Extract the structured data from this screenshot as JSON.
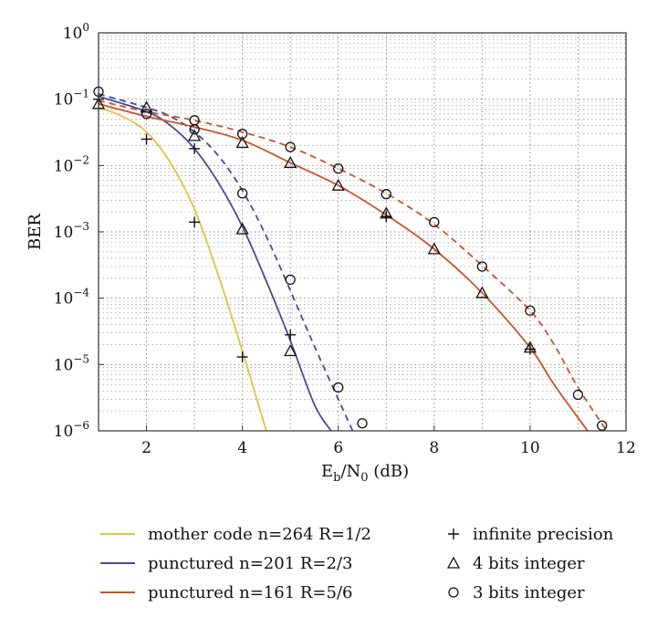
{
  "chart_data": {
    "type": "line",
    "xlabel_main": "E",
    "xlabel_sub1": "b",
    "xlabel_mid": "/N",
    "xlabel_sub2": "0",
    "xlabel_tail": " (dB)",
    "ylabel": "BER",
    "xlim": [
      1,
      12
    ],
    "ylim": [
      1e-06,
      1
    ],
    "yscale": "log",
    "grid": true,
    "legend_position": "below",
    "x_ticks": [
      2,
      4,
      6,
      8,
      10,
      12
    ],
    "y_tick_exponents": [
      0,
      -1,
      -2,
      -3,
      -4,
      -5,
      -6
    ],
    "y_tick_base": "10",
    "colors": {
      "mother": "#e8c23a",
      "punct23": "#4a4a9a",
      "punct56": "#c9542a"
    },
    "curves": [
      {
        "name": "mother code n=264 R=1/2",
        "color_key": "mother",
        "dashed": false,
        "points": [
          [
            1,
            0.075
          ],
          [
            1.5,
            0.055
          ],
          [
            2,
            0.032
          ],
          [
            2.5,
            0.011
          ],
          [
            3,
            0.0022
          ],
          [
            3.5,
            0.00022
          ],
          [
            4,
            1.6e-05
          ],
          [
            4.3,
            3e-06
          ],
          [
            4.5,
            1e-06
          ]
        ]
      },
      {
        "name": "punctured n=201 R=2/3 (infinite precision)",
        "color_key": "punct23",
        "dashed": false,
        "points": [
          [
            1,
            0.11
          ],
          [
            2,
            0.065
          ],
          [
            2.5,
            0.04
          ],
          [
            3,
            0.018
          ],
          [
            3.5,
            0.0055
          ],
          [
            4,
            0.0012
          ],
          [
            4.5,
            0.00018
          ],
          [
            5,
            2.3e-05
          ],
          [
            5.5,
            2.5e-06
          ],
          [
            5.85,
            1e-06
          ]
        ]
      },
      {
        "name": "punctured n=201 R=2/3 (3 bits integer)",
        "color_key": "punct23",
        "dashed": true,
        "points": [
          [
            1,
            0.12
          ],
          [
            2,
            0.075
          ],
          [
            2.5,
            0.055
          ],
          [
            3,
            0.032
          ],
          [
            3.5,
            0.014
          ],
          [
            4,
            0.0042
          ],
          [
            4.5,
            0.00085
          ],
          [
            5,
            0.00013
          ],
          [
            5.5,
            1.9e-05
          ],
          [
            6,
            3e-06
          ],
          [
            6.3,
            1e-06
          ]
        ]
      },
      {
        "name": "punctured n=161 R=5/6 (infinite precision)",
        "color_key": "punct56",
        "dashed": false,
        "points": [
          [
            1,
            0.085
          ],
          [
            2,
            0.055
          ],
          [
            3,
            0.038
          ],
          [
            4,
            0.024
          ],
          [
            5,
            0.011
          ],
          [
            6,
            0.005
          ],
          [
            7,
            0.0018
          ],
          [
            8,
            0.00055
          ],
          [
            9,
            0.00012
          ],
          [
            10,
            1.8e-05
          ],
          [
            10.5,
            5e-06
          ],
          [
            11.2,
            1e-06
          ]
        ]
      },
      {
        "name": "punctured n=161 R=5/6 (3 bits integer)",
        "color_key": "punct56",
        "dashed": true,
        "points": [
          [
            1,
            0.095
          ],
          [
            2,
            0.065
          ],
          [
            3,
            0.048
          ],
          [
            4,
            0.032
          ],
          [
            5,
            0.019
          ],
          [
            6,
            0.009
          ],
          [
            7,
            0.0038
          ],
          [
            8,
            0.0013
          ],
          [
            9,
            0.00031
          ],
          [
            10,
            6.5e-05
          ],
          [
            10.5,
            2e-05
          ],
          [
            11,
            4.5e-06
          ],
          [
            11.6,
            1e-06
          ]
        ]
      }
    ],
    "markers": [
      {
        "symbol": "plus",
        "points": [
          [
            1,
            0.1
          ],
          [
            2,
            0.025
          ],
          [
            3,
            0.0014
          ],
          [
            4,
            1.3e-05
          ],
          [
            3,
            0.018
          ],
          [
            5,
            2.8e-05
          ],
          [
            7,
            0.0017
          ],
          [
            10,
            1.7e-05
          ]
        ]
      },
      {
        "symbol": "triangle",
        "points": [
          [
            1,
            0.085
          ],
          [
            2,
            0.075
          ],
          [
            3,
            0.028
          ],
          [
            4,
            0.0011
          ],
          [
            5,
            1.6e-05
          ],
          [
            4,
            0.022
          ],
          [
            5,
            0.011
          ],
          [
            6,
            0.005
          ],
          [
            7,
            0.0019
          ],
          [
            8,
            0.00055
          ],
          [
            9,
            0.00012
          ],
          [
            10,
            1.8e-05
          ]
        ]
      },
      {
        "symbol": "circle",
        "points": [
          [
            1,
            0.13
          ],
          [
            2,
            0.06
          ],
          [
            3,
            0.035
          ],
          [
            4,
            0.0038
          ],
          [
            5,
            0.00019
          ],
          [
            6,
            4.5e-06
          ],
          [
            6.5,
            1.3e-06
          ],
          [
            3,
            0.048
          ],
          [
            4,
            0.03
          ],
          [
            5,
            0.019
          ],
          [
            6,
            0.009
          ],
          [
            7,
            0.0037
          ],
          [
            8,
            0.0014
          ],
          [
            9,
            0.0003
          ],
          [
            10,
            6.5e-05
          ],
          [
            11,
            3.5e-06
          ],
          [
            11.5,
            1.2e-06
          ]
        ]
      }
    ],
    "legend": {
      "lines": [
        {
          "label": "mother code n=264 R=1/2",
          "color_key": "mother"
        },
        {
          "label": "punctured n=201 R=2/3",
          "color_key": "punct23"
        },
        {
          "label": "punctured n=161 R=5/6",
          "color_key": "punct56"
        }
      ],
      "markers": [
        {
          "symbol": "plus",
          "label": "infinite precision"
        },
        {
          "symbol": "triangle",
          "label": "4 bits integer"
        },
        {
          "symbol": "circle",
          "label": "3 bits integer"
        }
      ]
    }
  }
}
